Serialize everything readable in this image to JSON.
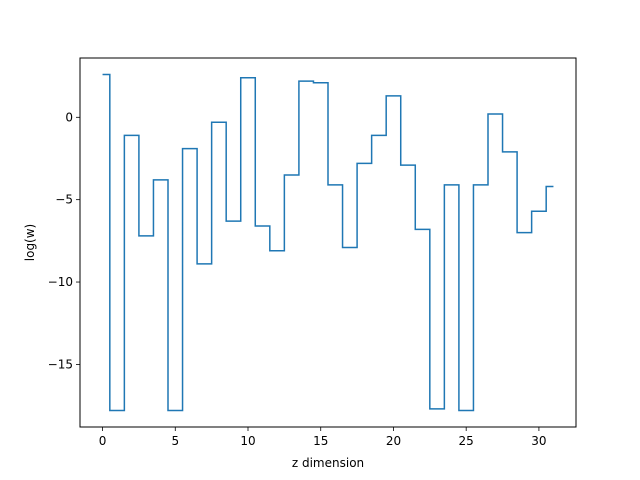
{
  "chart_data": {
    "type": "line",
    "drawstyle": "steps-post",
    "xlabel": "z dimension",
    "ylabel": "log(w)",
    "xlim": [
      -1.55,
      32.55
    ],
    "ylim": [
      -18.8,
      3.6
    ],
    "xticks": [
      0,
      5,
      10,
      15,
      20,
      25,
      30
    ],
    "yticks": [
      0,
      -5,
      -10,
      -15
    ],
    "xtick_labels": [
      "0",
      "5",
      "10",
      "15",
      "20",
      "25",
      "30"
    ],
    "ytick_labels": [
      "0",
      "−5",
      "−10",
      "−15"
    ],
    "grid": false,
    "line_color": "#1f77b4",
    "series": [
      {
        "x": [
          0,
          0.5,
          1.5,
          2.5,
          3.5,
          4.5,
          5.5,
          6.5,
          7.5,
          8.5,
          9.5,
          10.5,
          11.5,
          12.5,
          13.5,
          14.5,
          15.5,
          16.5,
          17.5,
          18.5,
          19.5,
          20.5,
          21.5,
          22.5,
          23.5,
          24.5,
          25.5,
          26.5,
          27.5,
          28.5,
          29.5,
          30.5,
          31
        ],
        "values": [
          2.6,
          -17.8,
          -1.1,
          -7.2,
          -3.8,
          -17.8,
          -1.9,
          -8.9,
          -0.3,
          -6.3,
          2.4,
          -6.6,
          -8.1,
          -3.5,
          2.2,
          2.1,
          -4.1,
          -7.9,
          -2.8,
          -1.1,
          1.3,
          -2.9,
          -6.8,
          -17.7,
          -4.1,
          -17.8,
          -4.1,
          0.2,
          -2.1,
          -7.0,
          -5.7,
          -4.2,
          -4.2
        ]
      }
    ]
  }
}
